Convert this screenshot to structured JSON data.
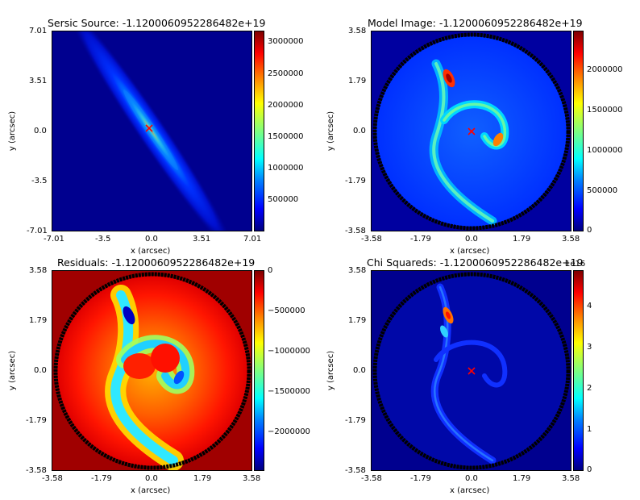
{
  "chart_data": [
    {
      "type": "heatmap",
      "title": "Sersic Source: -1.1200060952286482e+19",
      "xlabel": "x (arcsec)",
      "ylabel": "y (arcsec)",
      "xticks": [
        "-7.01",
        "-3.5",
        "0.0",
        "3.51",
        "7.01"
      ],
      "yticks": [
        "7.01",
        "3.51",
        "0.0",
        "-3.5",
        "-7.01"
      ],
      "xlim": [
        -7.01,
        7.01
      ],
      "ylim": [
        -7.01,
        7.01
      ],
      "colorbar_ticks": [
        "3000000",
        "2500000",
        "2000000",
        "1500000",
        "1000000",
        "500000"
      ],
      "colorbar_range": [
        0,
        3200000
      ],
      "colormap": "jet",
      "marker": {
        "x": -0.2,
        "y": 0.2,
        "color": "#ff0000"
      }
    },
    {
      "type": "heatmap",
      "title": "Model Image: -1.1200060952286482e+19",
      "xlabel": "x (arcsec)",
      "ylabel": "y (arcsec)",
      "xticks": [
        "-3.58",
        "-1.79",
        "0.0",
        "1.79",
        "3.58"
      ],
      "yticks": [
        "3.58",
        "1.79",
        "0.0",
        "-1.79",
        "-3.58"
      ],
      "xlim": [
        -3.58,
        3.58
      ],
      "ylim": [
        -3.58,
        3.58
      ],
      "colorbar_ticks": [
        "2000000",
        "1500000",
        "1000000",
        "500000",
        "0"
      ],
      "colorbar_range": [
        0,
        2450000
      ],
      "colormap": "jet",
      "marker": {
        "x": 0.0,
        "y": 0.0,
        "color": "#ff0000"
      }
    },
    {
      "type": "heatmap",
      "title": "Residuals: -1.1200060952286482e+19",
      "xlabel": "x (arcsec)",
      "ylabel": "y (arcsec)",
      "xticks": [
        "-3.58",
        "-1.79",
        "0.0",
        "1.79",
        "3.58"
      ],
      "yticks": [
        "3.58",
        "1.79",
        "0.0",
        "-1.79",
        "-3.58"
      ],
      "xlim": [
        -3.58,
        3.58
      ],
      "ylim": [
        -3.58,
        3.58
      ],
      "colorbar_ticks": [
        "0",
        "−500000",
        "−1000000",
        "−1500000",
        "−2000000"
      ],
      "colorbar_range": [
        -2450000,
        0
      ],
      "colormap": "jet"
    },
    {
      "type": "heatmap",
      "title": "Chi Squareds: -1.1200060952286482e+19",
      "xlabel": "x (arcsec)",
      "ylabel": "y (arcsec)",
      "xticks": [
        "-3.58",
        "-1.79",
        "0.0",
        "1.79",
        "3.58"
      ],
      "yticks": [
        "3.58",
        "1.79",
        "0.0",
        "-1.79",
        "-3.58"
      ],
      "xlim": [
        -3.58,
        3.58
      ],
      "ylim": [
        -3.58,
        3.58
      ],
      "colorbar_ticks": [
        "4",
        "3",
        "2",
        "1",
        "0"
      ],
      "colorbar_range": [
        0,
        4.9
      ],
      "colorbar_offset": "1e16",
      "colormap": "jet",
      "marker": {
        "x": 0.0,
        "y": 0.0,
        "color": "#ff0000"
      }
    }
  ]
}
